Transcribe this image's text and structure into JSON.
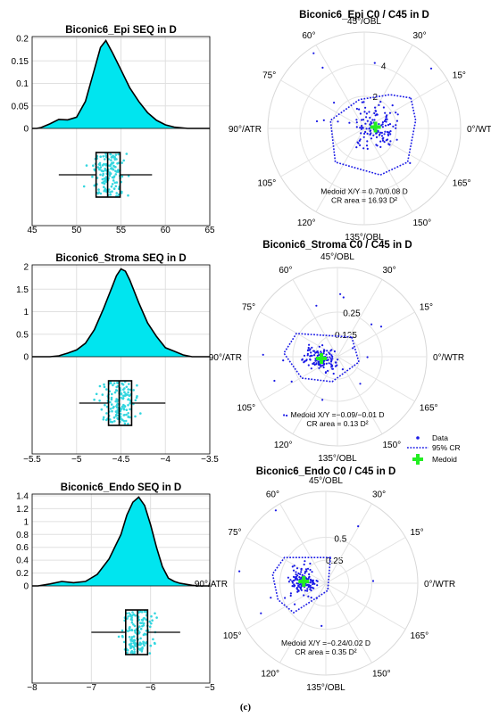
{
  "figure": {
    "caption": "(c)",
    "colors": {
      "kde_fill": "#00e5ef",
      "box_points": "#33d6df",
      "polar_points": "#1a1ae6",
      "medoid": "#22ee22",
      "grid": "#e0e0e0"
    }
  },
  "chart_data": [
    {
      "type": "area",
      "id": "epi",
      "title": "Biconic6_Epi SEQ in D",
      "xlim": [
        45,
        65
      ],
      "xticks": [
        "45",
        "50",
        "55",
        "60",
        "65"
      ],
      "ylim": [
        0,
        0.2
      ],
      "yticks": [
        "0",
        "0.05",
        "0.1",
        "0.15",
        "0.2"
      ],
      "kde": {
        "x": [
          45.5,
          46,
          47,
          48,
          49,
          50,
          51,
          52,
          52.7,
          53.3,
          54,
          55,
          56,
          57,
          58,
          59,
          60,
          61,
          62,
          62.5
        ],
        "y": [
          0,
          0.002,
          0.01,
          0.02,
          0.019,
          0.025,
          0.06,
          0.13,
          0.18,
          0.195,
          0.17,
          0.13,
          0.09,
          0.06,
          0.035,
          0.018,
          0.008,
          0.003,
          0.001,
          0
        ]
      },
      "box": {
        "whisker_low": 48,
        "q1": 52.2,
        "median": 53.5,
        "q3": 54.9,
        "whisker_high": 58.5,
        "points_range": [
          48,
          59
        ]
      }
    },
    {
      "type": "area",
      "id": "stroma",
      "title": "Biconic6_Stroma SEQ in D",
      "xlim": [
        -5.5,
        -3.5
      ],
      "xticks": [
        "-5.5",
        "-5",
        "-4.5",
        "-4",
        "-3.5"
      ],
      "ylim": [
        0,
        2
      ],
      "yticks": [
        "0",
        "0.5",
        "1",
        "1.5",
        "2"
      ],
      "kde": {
        "x": [
          -5.3,
          -5.2,
          -5.1,
          -5.0,
          -4.9,
          -4.8,
          -4.7,
          -4.6,
          -4.55,
          -4.5,
          -4.45,
          -4.4,
          -4.3,
          -4.2,
          -4.1,
          -4.0,
          -3.9,
          -3.8,
          -3.7
        ],
        "y": [
          0,
          0.02,
          0.08,
          0.15,
          0.3,
          0.6,
          1.05,
          1.55,
          1.8,
          1.95,
          1.9,
          1.7,
          1.2,
          0.75,
          0.45,
          0.2,
          0.12,
          0.04,
          0
        ]
      },
      "box": {
        "whisker_low": -4.97,
        "q1": -4.64,
        "median": -4.52,
        "q3": -4.38,
        "whisker_high": -4.0,
        "points_range": [
          -5.15,
          -3.82
        ]
      }
    },
    {
      "type": "area",
      "id": "endo",
      "title": "Biconic6_Endo SEQ in D",
      "xlim": [
        -8,
        -5
      ],
      "xticks": [
        "-8",
        "-7",
        "-6",
        "-5"
      ],
      "ylim": [
        0,
        1.4
      ],
      "yticks": [
        "0",
        "0.2",
        "0.4",
        "0.6",
        "0.8",
        "1",
        "1.2",
        "1.4"
      ],
      "kde": {
        "x": [
          -7.9,
          -7.7,
          -7.5,
          -7.3,
          -7.1,
          -6.9,
          -6.7,
          -6.5,
          -6.4,
          -6.3,
          -6.2,
          -6.1,
          -6.0,
          -5.9,
          -5.8,
          -5.7,
          -5.6,
          -5.5,
          -5.3,
          -5.2
        ],
        "y": [
          0,
          0.03,
          0.07,
          0.05,
          0.07,
          0.18,
          0.42,
          0.8,
          1.1,
          1.3,
          1.38,
          1.25,
          0.95,
          0.6,
          0.3,
          0.12,
          0.07,
          0.04,
          0.01,
          0
        ]
      },
      "box": {
        "whisker_low": -7.0,
        "q1": -6.42,
        "median": -6.22,
        "q3": -6.05,
        "whisker_high": -5.5,
        "points_range": [
          -7.6,
          -5.4
        ]
      }
    },
    {
      "type": "scatter",
      "id": "epi_polar",
      "title": "Biconic6_Epi C0 / C45 in D",
      "angle_labels": [
        "0°/WTR",
        "15°",
        "30°",
        "45°/OBL",
        "60°",
        "75°",
        "90°/ATR",
        "105°",
        "120°",
        "135°/OBL",
        "150°",
        "165°"
      ],
      "radial_ticks": [
        "2",
        "4"
      ],
      "rlim": 6,
      "medoid": [
        0.7,
        0.08
      ],
      "cr_hull_xy": [
        [
          2.9,
          1.9
        ],
        [
          3.2,
          0.5
        ],
        [
          2.7,
          -2.1
        ],
        [
          1.0,
          -2.9
        ],
        [
          -1.8,
          -2.1
        ],
        [
          -2.1,
          0.5
        ],
        [
          -0.3,
          1.8
        ],
        [
          1.6,
          2.1
        ]
      ],
      "annotation": [
        "Medoid X/Y = 0.70/0.08 D",
        "CR area = 16.93 D²"
      ]
    },
    {
      "type": "scatter",
      "id": "stroma_polar",
      "title": "Biconic6_Stroma C0 / C45 in D",
      "angle_labels": [
        "0°/WTR",
        "15°",
        "30°",
        "45°/OBL",
        "60°",
        "75°",
        "90°/ATR",
        "105°",
        "120°",
        "135°/OBL",
        "150°",
        "165°"
      ],
      "radial_ticks": [
        "0.125",
        "0.25"
      ],
      "rlim": 0.5,
      "medoid": [
        -0.09,
        -0.01
      ],
      "cr_hull_xy": [
        [
          0.08,
          0.11
        ],
        [
          0.12,
          -0.03
        ],
        [
          -0.03,
          -0.14
        ],
        [
          -0.2,
          -0.12
        ],
        [
          -0.3,
          0.02
        ],
        [
          -0.23,
          0.13
        ]
      ],
      "annotation": [
        "Medoid X/Y =−0.09/−0.01 D",
        "CR area = 0.13 D²"
      ],
      "legend": [
        "Data",
        "95% CR",
        "Medoid"
      ]
    },
    {
      "type": "scatter",
      "id": "endo_polar",
      "title": "Biconic6_Endo C0 / C45 in D",
      "angle_labels": [
        "0°/WTR",
        "15°",
        "30°",
        "45°/OBL",
        "60°",
        "75°",
        "90°/ATR",
        "105°",
        "120°",
        "135°/OBL",
        "150°",
        "165°"
      ],
      "radial_ticks": [
        "0.25",
        "0.5"
      ],
      "rlim": 1,
      "medoid": [
        -0.24,
        0.02
      ],
      "cr_hull_xy": [
        [
          0.05,
          0.28
        ],
        [
          0.02,
          -0.08
        ],
        [
          -0.35,
          -0.32
        ],
        [
          -0.52,
          -0.18
        ],
        [
          -0.58,
          0.1
        ],
        [
          -0.45,
          0.28
        ]
      ],
      "annotation": [
        "Medoid X/Y =−0.24/0.02 D",
        "CR area = 0.35 D²"
      ]
    }
  ]
}
